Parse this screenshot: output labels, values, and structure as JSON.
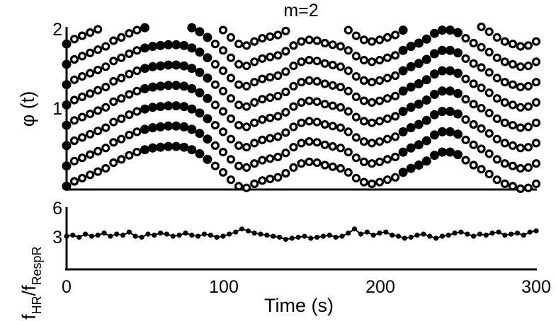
{
  "chart_data": [
    {
      "type": "scatter",
      "title": "m=2",
      "ylabel": "φ (t)",
      "xlim": [
        0,
        300
      ],
      "ylim": [
        0,
        2
      ],
      "yticks": [
        "1",
        "2"
      ],
      "grid": false,
      "marker_styles": [
        "filled",
        "ring"
      ],
      "point_color": "#000000",
      "x": [
        0,
        5,
        10,
        15,
        20,
        25,
        30,
        35,
        40,
        45,
        50,
        55,
        60,
        65,
        70,
        75,
        80,
        85,
        90,
        95,
        100,
        105,
        110,
        115,
        120,
        125,
        130,
        135,
        140,
        145,
        150,
        155,
        160,
        165,
        170,
        175,
        180,
        185,
        190,
        195,
        200,
        205,
        210,
        215,
        220,
        225,
        230,
        235,
        240,
        245,
        250,
        255,
        260,
        265,
        270,
        275,
        280,
        285,
        290,
        295,
        300
      ],
      "phase": [
        0.04,
        0.1,
        0.14,
        0.18,
        0.22,
        0.26,
        0.33,
        0.37,
        0.42,
        0.46,
        0.49,
        0.51,
        0.52,
        0.53,
        0.53,
        0.52,
        0.49,
        0.44,
        0.37,
        0.29,
        0.21,
        0.12,
        0.04,
        0.02,
        0.07,
        0.11,
        0.13,
        0.15,
        0.2,
        0.27,
        0.32,
        0.34,
        0.33,
        0.3,
        0.28,
        0.26,
        0.21,
        0.14,
        0.09,
        0.07,
        0.09,
        0.12,
        0.15,
        0.21,
        0.26,
        0.3,
        0.35,
        0.42,
        0.46,
        0.46,
        0.43,
        0.36,
        0.3,
        0.25,
        0.19,
        0.12,
        0.07,
        0.04,
        0.01,
        0.02,
        0.07
      ],
      "filled_x_ranges": [
        [
          0,
          0
        ],
        [
          50,
          90
        ],
        [
          215,
          250
        ]
      ],
      "ticks_rendered_on_bottom_axis": false
    },
    {
      "type": "scatter",
      "ylabel_main": "f",
      "ylabel_sub1": "HR",
      "ylabel_mid": "/f",
      "ylabel_sub2": "RespR",
      "xlabel": "Time (s)",
      "xlim": [
        0,
        300
      ],
      "ylim": [
        0,
        6
      ],
      "xticks": [
        "0",
        "100",
        "200",
        "300"
      ],
      "yticks": [
        "3",
        "6"
      ],
      "grid": false,
      "point_color": "#000000",
      "x": [
        0,
        4,
        8,
        12,
        16,
        20,
        24,
        28,
        32,
        36,
        40,
        44,
        48,
        52,
        56,
        60,
        64,
        68,
        72,
        76,
        80,
        84,
        88,
        92,
        96,
        100,
        104,
        108,
        112,
        116,
        120,
        124,
        128,
        132,
        136,
        140,
        144,
        148,
        152,
        156,
        160,
        164,
        168,
        172,
        176,
        180,
        184,
        188,
        192,
        196,
        200,
        204,
        208,
        212,
        216,
        220,
        224,
        228,
        232,
        236,
        240,
        244,
        248,
        252,
        256,
        260,
        264,
        268,
        272,
        276,
        280,
        284,
        288,
        292,
        296,
        300
      ],
      "values": [
        3.2,
        3.3,
        3.1,
        3.4,
        3.2,
        3.3,
        3.5,
        3.2,
        3.4,
        3.3,
        3.6,
        3.2,
        3.1,
        3.4,
        3.3,
        3.5,
        3.4,
        3.2,
        3.3,
        3.5,
        3.3,
        3.2,
        3.4,
        3.3,
        3.1,
        3.2,
        3.4,
        3.6,
        3.9,
        3.7,
        3.5,
        3.4,
        3.3,
        3.2,
        3.1,
        2.9,
        3.0,
        3.1,
        3.2,
        3.0,
        3.1,
        3.2,
        3.3,
        3.1,
        3.2,
        3.5,
        3.9,
        3.4,
        3.6,
        3.3,
        3.5,
        3.6,
        3.3,
        3.2,
        3.0,
        3.1,
        3.3,
        3.4,
        3.2,
        3.0,
        3.2,
        3.3,
        3.5,
        3.6,
        3.4,
        3.2,
        3.4,
        3.3,
        3.5,
        3.6,
        3.3,
        3.4,
        3.5,
        3.3,
        3.6,
        3.7
      ]
    }
  ]
}
